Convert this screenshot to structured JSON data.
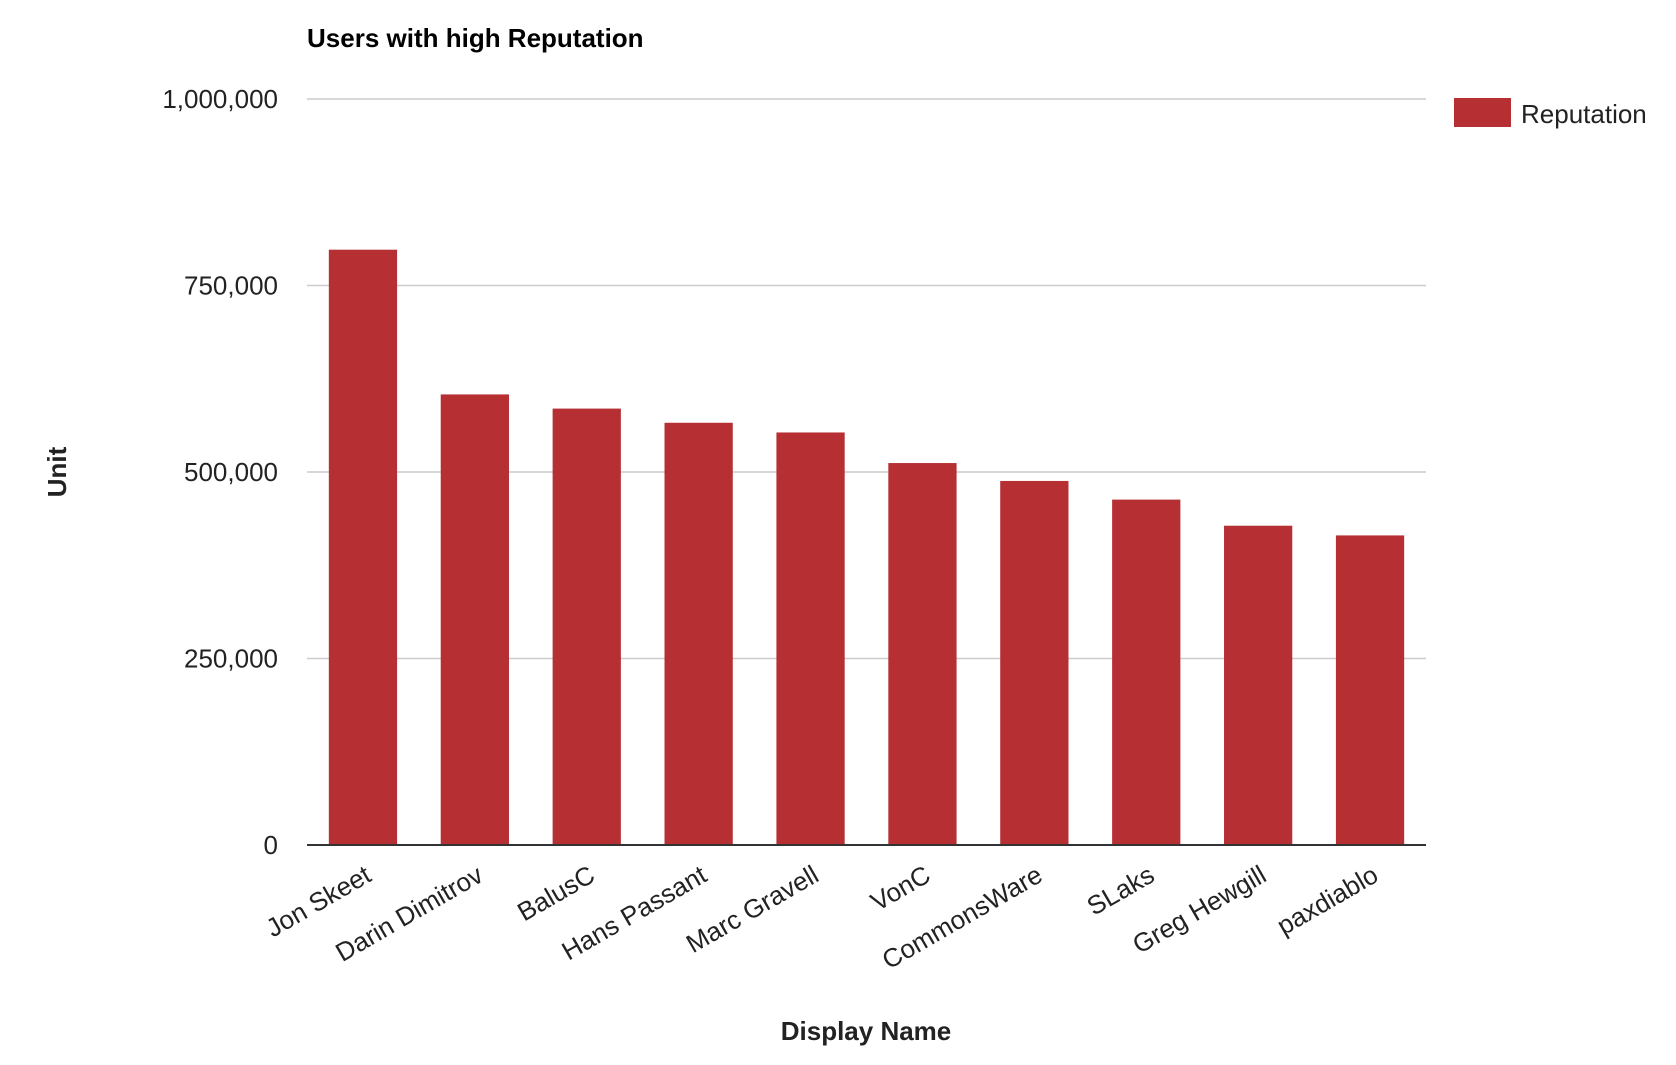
{
  "chart_data": {
    "type": "bar",
    "title": "Users with high Reputation",
    "xlabel": "Display Name",
    "ylabel": "Unit",
    "categories": [
      "Jon Skeet",
      "Darin Dimitrov",
      "BalusC",
      "Hans Passant",
      "Marc Gravell",
      "VonC",
      "CommonsWare",
      "SLaks",
      "Greg Hewgill",
      "paxdiablo"
    ],
    "series": [
      {
        "name": "Reputation",
        "values": [
          798000,
          604000,
          585000,
          566000,
          553000,
          512000,
          488000,
          463000,
          428000,
          415000
        ]
      }
    ],
    "ylim": [
      0,
      1000000
    ],
    "yticks": [
      0,
      250000,
      500000,
      750000,
      1000000
    ],
    "ytick_labels": [
      "0",
      "250,000",
      "500,000",
      "750,000",
      "1,000,000"
    ],
    "grid": true,
    "legend_position": "right",
    "colors": {
      "bar": "#b52f33",
      "grid": "#cccccc",
      "axis": "#333333",
      "text": "#222222"
    }
  }
}
